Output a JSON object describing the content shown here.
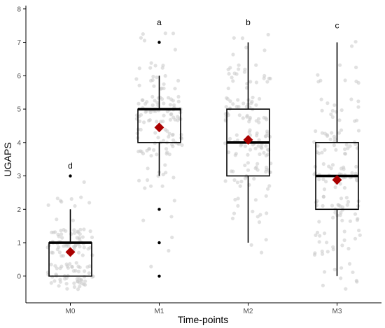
{
  "chart_data": {
    "type": "boxplot",
    "xlabel": "Time-points",
    "ylabel": "UGAPS",
    "ylim": [
      -0.8,
      8.1
    ],
    "y_ticks": [
      0,
      1,
      2,
      3,
      4,
      5,
      6,
      7,
      8
    ],
    "grid": false,
    "colors": {
      "points": "#c8c8c8",
      "box": "#000000",
      "mean_marker": "#aa0000",
      "axis": "#000000"
    },
    "groups": [
      {
        "category": "M0",
        "letter": "d",
        "min": 0,
        "q1": 0,
        "median": 1,
        "q3": 1,
        "max": 2,
        "mean": 0.72,
        "outliers": [
          3
        ],
        "letter_y": 3.3,
        "jitter_counts": {
          "0": 55,
          "1": 60,
          "2": 10,
          "3": 1
        }
      },
      {
        "category": "M1",
        "letter": "a",
        "min": 3,
        "q1": 4,
        "median": 5,
        "q3": 5,
        "max": 6,
        "mean": 4.45,
        "outliers": [
          0,
          1,
          2,
          7
        ],
        "letter_y": 7.6,
        "jitter_counts": {
          "0": 1,
          "1": 2,
          "2": 3,
          "3": 12,
          "4": 40,
          "5": 60,
          "6": 20,
          "7": 6
        }
      },
      {
        "category": "M2",
        "letter": "b",
        "min": 1,
        "q1": 3,
        "median": 4,
        "q3": 5,
        "max": 7,
        "mean": 4.08,
        "outliers": [],
        "letter_y": 7.6,
        "jitter_counts": {
          "1": 3,
          "2": 12,
          "3": 28,
          "4": 40,
          "5": 40,
          "6": 22,
          "7": 6
        }
      },
      {
        "category": "M3",
        "letter": "c",
        "min": 0,
        "q1": 2,
        "median": 3,
        "q3": 4,
        "max": 7,
        "mean": 2.88,
        "outliers": [],
        "letter_y": 7.5,
        "jitter_counts": {
          "0": 10,
          "1": 20,
          "2": 30,
          "3": 35,
          "4": 30,
          "5": 15,
          "6": 8,
          "7": 2
        }
      }
    ]
  }
}
